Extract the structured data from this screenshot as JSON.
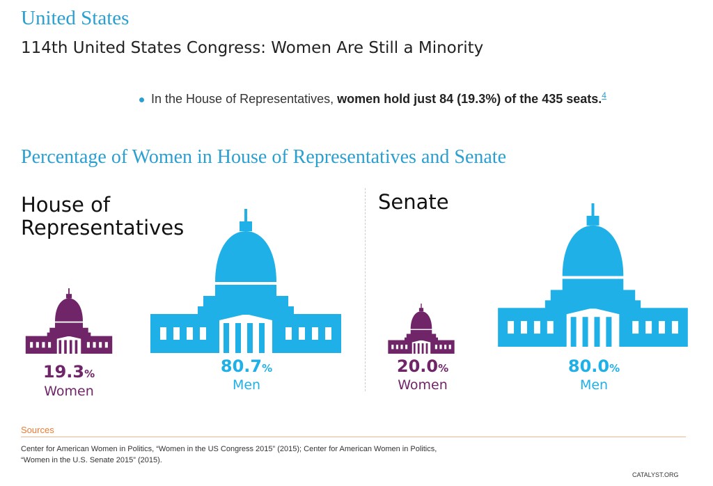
{
  "country": "United States",
  "subtitle": "114th United States Congress: Women Are Still a Minority",
  "bullet": {
    "prefix": "In the House of Representatives, ",
    "bold": "women hold just 84 (19.3%) of the 435 seats.",
    "footnote": "4"
  },
  "chart_title": "Percentage of Women in House of Representatives and Senate",
  "chart_data": {
    "type": "pictogram",
    "title": "Percentage of Women in House of Representatives and Senate",
    "panels": [
      {
        "name_line1": "House of",
        "name_line2": "Representatives",
        "women": {
          "value": "19.3",
          "unit": "%",
          "label": "Women"
        },
        "men": {
          "value": "80.7",
          "unit": "%",
          "label": "Men"
        }
      },
      {
        "name": "Senate",
        "women": {
          "value": "20.0",
          "unit": "%",
          "label": "Women"
        },
        "men": {
          "value": "80.0",
          "unit": "%",
          "label": "Men"
        }
      }
    ],
    "colors": {
      "women": "#6f2568",
      "men": "#1fb0e8"
    }
  },
  "sources": {
    "heading": "Sources",
    "line1": "Center for American Women in Politics, “Women in the US Congress 2015” (2015); Center for American Women in Politics,",
    "line2": "“Women in the U.S. Senate 2015” (2015)."
  },
  "brand": "CATALYST.ORG"
}
